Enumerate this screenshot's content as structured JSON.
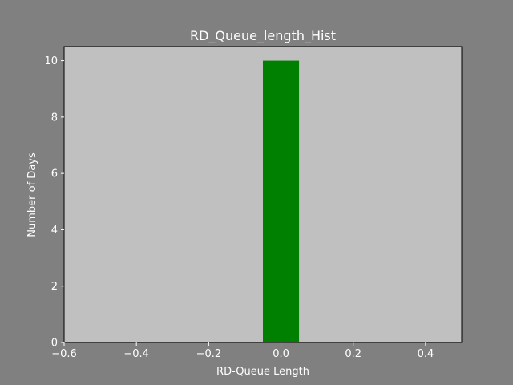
{
  "figure": {
    "background": "#808080",
    "plot_background": "#c0c0c0",
    "text_color": "#ffffff"
  },
  "chart_data": {
    "type": "bar",
    "title": "RD_Queue_length_Hist",
    "xlabel": "RD-Queue Length",
    "ylabel": "Number of Days",
    "xlim": [
      -0.6,
      0.5
    ],
    "ylim": [
      0,
      10.5
    ],
    "xticks": [
      -0.6,
      -0.4,
      -0.2,
      0.0,
      0.2,
      0.4
    ],
    "xtick_labels": [
      "−0.6",
      "−0.4",
      "−0.2",
      "0.0",
      "0.2",
      "0.4"
    ],
    "yticks": [
      0,
      2,
      4,
      6,
      8,
      10
    ],
    "ytick_labels": [
      "0",
      "2",
      "4",
      "6",
      "8",
      "10"
    ],
    "bars": [
      {
        "x_start": -0.05,
        "x_end": 0.05,
        "value": 10
      }
    ],
    "bar_color": "#008000",
    "grid": false,
    "legend": false
  }
}
